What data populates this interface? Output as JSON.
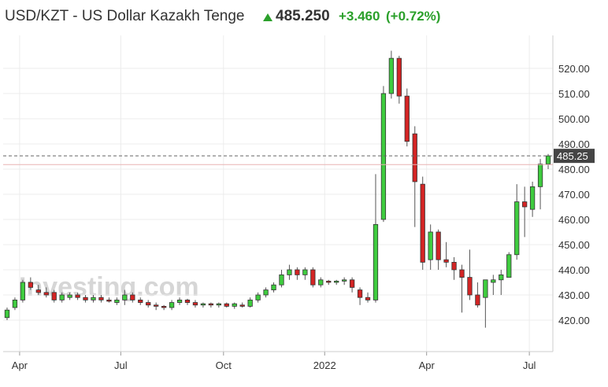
{
  "header": {
    "title": "USD/KZT - US Dollar Kazakh Tenge",
    "price": "485.250",
    "change": "+3.460",
    "change_pct": "(+0.72%)"
  },
  "chart_data": {
    "type": "candlestick",
    "watermark": "Investing.com",
    "x": [
      0,
      1,
      2,
      3,
      4,
      5,
      6,
      7,
      8,
      9,
      10,
      11,
      12,
      13,
      14,
      15,
      16,
      17,
      18,
      19,
      20,
      21,
      22,
      23,
      24,
      25,
      26,
      27,
      28,
      29,
      30,
      31,
      32,
      33,
      34,
      35,
      36,
      37,
      38,
      39,
      40,
      41,
      42,
      43,
      44,
      45,
      46,
      47,
      48,
      49,
      50,
      51,
      52,
      53,
      54,
      55,
      56,
      57,
      58,
      59,
      60,
      61,
      62,
      63,
      64,
      65,
      66,
      67,
      68,
      69
    ],
    "open": [
      421,
      425,
      428,
      435,
      432,
      431,
      431,
      428,
      429,
      430,
      429,
      428,
      429,
      428,
      427,
      428,
      430,
      428,
      427,
      426,
      425.5,
      425,
      427,
      428,
      427,
      426,
      426.5,
      426,
      426.5,
      425.5,
      426,
      425.5,
      428,
      430,
      432,
      434,
      438,
      440,
      438,
      440,
      434,
      435.5,
      435,
      435.5,
      436,
      432,
      429,
      428,
      460,
      510,
      524,
      509,
      494,
      474,
      444,
      455,
      444,
      443,
      440,
      437,
      430,
      429,
      435,
      436,
      437,
      446,
      467,
      464,
      473,
      482
    ],
    "high": [
      425,
      429,
      436,
      437,
      434,
      433,
      432,
      431,
      431,
      431,
      430,
      430,
      430,
      429,
      429,
      432,
      431,
      429,
      428,
      427,
      426,
      428,
      429,
      428.5,
      428,
      427,
      427,
      427,
      427,
      427,
      427,
      429,
      431,
      433,
      435,
      440,
      442,
      441,
      441,
      441,
      437,
      436,
      436,
      437,
      437,
      433,
      431,
      478,
      513,
      527,
      525,
      512,
      497,
      477,
      458,
      456,
      451,
      445,
      442,
      448,
      435,
      436,
      438,
      440,
      447,
      474,
      473,
      475,
      484,
      486
    ],
    "low": [
      420,
      424,
      427,
      432,
      430,
      429,
      427,
      427,
      428,
      428,
      427,
      427,
      427,
      427,
      426,
      426,
      427,
      426,
      425,
      424,
      424,
      424,
      426,
      426,
      425,
      425,
      425,
      425,
      425,
      424.5,
      425,
      425,
      427,
      429,
      431,
      433,
      436,
      436,
      436,
      433,
      433,
      434,
      434,
      434,
      431,
      426,
      427,
      427,
      459,
      508,
      506,
      489,
      457,
      440,
      440,
      440,
      441,
      436,
      423,
      428,
      425,
      417,
      430,
      430,
      437,
      444,
      453,
      461,
      464,
      480
    ],
    "close": [
      424,
      428,
      435,
      433,
      431,
      430,
      428,
      430,
      430,
      429,
      428,
      429,
      428,
      427.5,
      428,
      430,
      428,
      427,
      426,
      425.5,
      425,
      427,
      428,
      427,
      426,
      426.5,
      426,
      426.5,
      425.5,
      426.5,
      425.5,
      428,
      430,
      432,
      434,
      438,
      440,
      438,
      440,
      434,
      436,
      435,
      435.5,
      436,
      433,
      429,
      428,
      458,
      510,
      524,
      509,
      491,
      475,
      443,
      455,
      444,
      443,
      440,
      437,
      430,
      426,
      436,
      436,
      438,
      446,
      467,
      465,
      473,
      482,
      485.25
    ],
    "up_color": "#3fcc3f",
    "down_color": "#d32424",
    "xlim": [
      -0.5,
      69.6
    ],
    "ylim": [
      407.5,
      533.1
    ],
    "xticks": [
      {
        "value": 1.6,
        "label": "Apr"
      },
      {
        "value": 14.5,
        "label": "Jul"
      },
      {
        "value": 27.6,
        "label": "Oct"
      },
      {
        "value": 40.5,
        "label": "2022"
      },
      {
        "value": 53.5,
        "label": "Apr"
      },
      {
        "value": 66.6,
        "label": "Jul"
      }
    ],
    "yticks": [
      {
        "value": 420,
        "label": "420.00"
      },
      {
        "value": 430,
        "label": "430.00"
      },
      {
        "value": 440,
        "label": "440.00"
      },
      {
        "value": 450,
        "label": "450.00"
      },
      {
        "value": 460,
        "label": "460.00"
      },
      {
        "value": 470,
        "label": "470.00"
      },
      {
        "value": 480,
        "label": "480.00"
      },
      {
        "value": 490,
        "label": "490.00"
      },
      {
        "value": 500,
        "label": "500.00"
      },
      {
        "value": 510,
        "label": "510.00"
      },
      {
        "value": 520,
        "label": "520.00"
      }
    ],
    "last_value": 485.25,
    "previous_close": 481.79,
    "grid": true
  }
}
